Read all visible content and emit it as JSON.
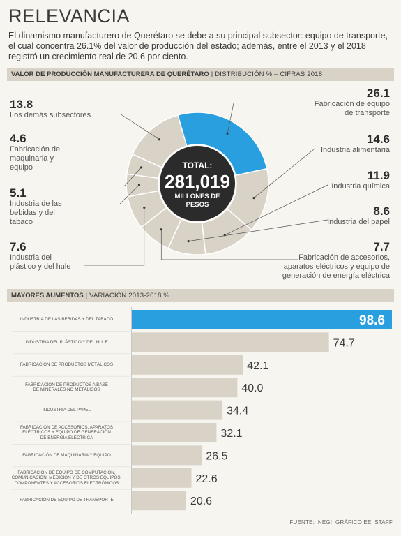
{
  "header": {
    "title": "RELEVANCIA",
    "intro": "El dinamismo manufacturero de Querétaro se debe a su principal subsector: equipo de transporte, el cual concentra 26.1% del valor de producción del estado; además, entre el 2013 y el 2018 registró un crecimiento real de 20.6 por ciento."
  },
  "section1": {
    "title_bold": "VALOR DE PRODUCCIÓN MANUFACTURERA DE QUERÉTARO",
    "separator": "|",
    "title_sub": "DISTRIBUCIÓN % – CIFRAS 2018"
  },
  "section2": {
    "title_bold": "MAYORES AUMENTOS",
    "separator": "|",
    "title_sub": "VARIACIÓN 2013-2018 %"
  },
  "center": {
    "line1": "TOTAL:",
    "value": "281,019",
    "line2": "MILLONES DE",
    "line3": "PESOS"
  },
  "source": "FUENTE: INEGI. GRÁFICO EE: STAFF",
  "colors": {
    "highlight": "#2a9fe0",
    "slice": "#d9d2c6",
    "bar": "#d9d2c6",
    "center": "#2b2b2b"
  },
  "chart_data": [
    {
      "type": "pie",
      "title": "VALOR DE PRODUCCIÓN MANUFACTURERA DE QUERÉTARO",
      "subtitle": "DISTRIBUCIÓN % – CIFRAS 2018",
      "slices": [
        {
          "label": "Fabricación de equipo de transporte",
          "value": 26.1,
          "display": "26.1"
        },
        {
          "label": "Industria alimentaria",
          "value": 14.6,
          "display": "14.6"
        },
        {
          "label": "Industria química",
          "value": 11.9,
          "display": "11.9"
        },
        {
          "label": "Industria del papel",
          "value": 8.6,
          "display": "8.6"
        },
        {
          "label": "Fabricación de accesorios, aparatos eléctricos y equipo de generación de energía eléctrica",
          "value": 7.7,
          "display": "7.7"
        },
        {
          "label": "Industria del plástico y del hule",
          "value": 7.6,
          "display": "7.6"
        },
        {
          "label": "Industria de las bebidas y del tabaco",
          "value": 5.1,
          "display": "5.1"
        },
        {
          "label": "Fabricación de maquinaria y equipo",
          "value": 4.6,
          "display": "4.6"
        },
        {
          "label": "Los demás subsectores",
          "value": 13.8,
          "display": "13.8"
        }
      ]
    },
    {
      "type": "bar",
      "title": "MAYORES AUMENTOS",
      "subtitle": "VARIACIÓN 2013-2018 %",
      "categories": [
        "INDUSTRIA DE LAS BEBIDAS Y DEL TABACO",
        "INDUSTRIA DEL PLÁSTICO Y DEL HULE",
        "FABRICACIÓN DE PRODUCTOS METÁLICOS",
        "FABRICACIÓN DE PRODUCTOS A BASE DE MINERALES NO METÁLICOS",
        "INDUSTRIA DEL PAPEL",
        "FABRICACIÓN DE ACCESORIOS, APARATOS ELÉCTRICOS Y EQUIPO DE GENERACIÓN DE ENERGÍA ELÉCTRICA",
        "FABRICACIÓN DE MAQUINARIA Y EQUIPO",
        "FABRICACIÓN DE EQUIPO DE COMPUTACIÓN, COMUNICACIÓN, MEDICIÓN Y DE OTROS EQUIPOS, COMPONENTES Y ACCESORIOS ELECTRÓNICOS",
        "FABRICACIÓN DE EQUIPO DE TRANSPORTE"
      ],
      "values": [
        98.6,
        74.7,
        42.1,
        40.0,
        34.4,
        32.1,
        26.5,
        22.6,
        20.6
      ],
      "labels": [
        "98.6",
        "74.7",
        "42.1",
        "40.0",
        "34.4",
        "32.1",
        "26.5",
        "22.6",
        "20.6"
      ],
      "category_lines": [
        [
          "INDUSTRIA DE LAS BEBIDAS Y DEL TABACO"
        ],
        [
          "INDUSTRIA DEL PLÁSTICO Y DEL HULE"
        ],
        [
          "FABRICACIÓN DE PRODUCTOS METÁLICOS"
        ],
        [
          "FABRICACIÓN DE PRODUCTOS A BASE",
          "DE MINERALES NO METÁLICOS"
        ],
        [
          "INDUSTRIA DEL PAPEL"
        ],
        [
          "FABRICACIÓN DE ACCESORIOS, APARATOS",
          "ELÉCTRICOS Y EQUIPO DE GENERACIÓN",
          "DE ENERGÍA ELÉCTRICA"
        ],
        [
          "FABRICACIÓN DE MAQUINARIA Y EQUIPO"
        ],
        [
          "FABRICACIÓN DE EQUIPO DE COMPUTACIÓN,",
          "COMUNICACIÓN, MEDICIÓN Y DE OTROS EQUIPOS,",
          "COMPONENTES Y ACCESORIOS ELECTRÓNICOS"
        ],
        [
          "FABRICACIÓN DE EQUIPO DE TRANSPORTE"
        ]
      ],
      "highlight_index": 0
    }
  ]
}
